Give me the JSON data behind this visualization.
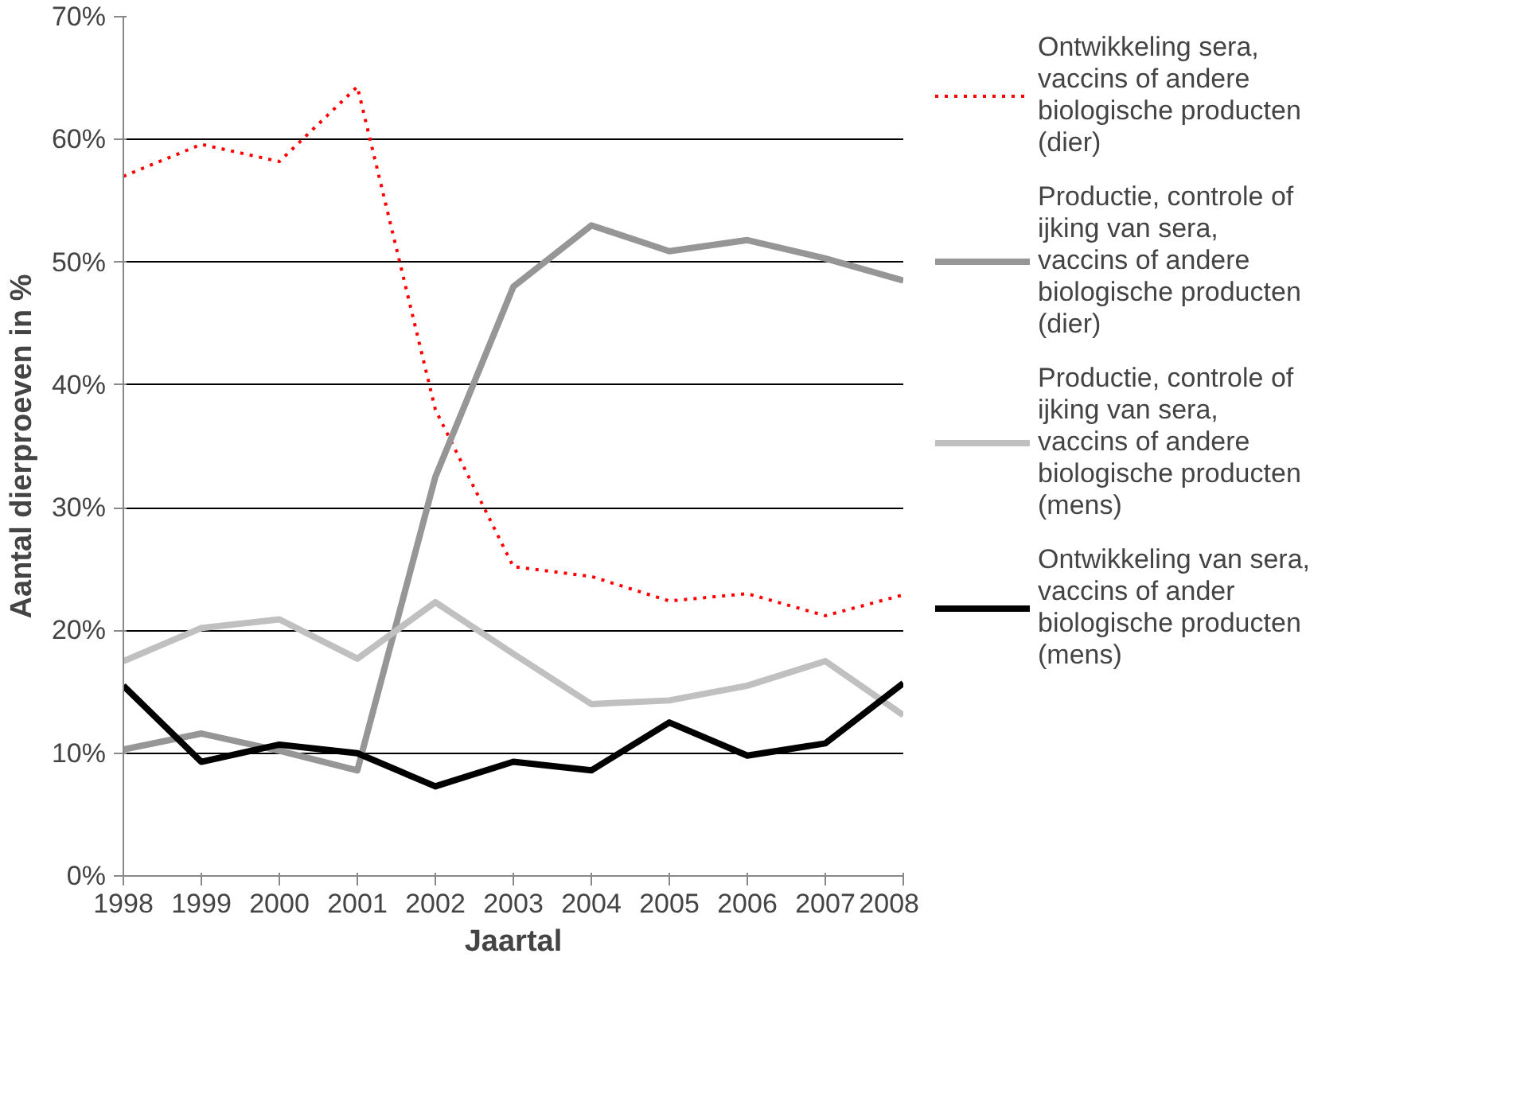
{
  "chart_data": {
    "type": "line",
    "xlabel": "Jaartal",
    "ylabel": "Aantal dierproeven in %",
    "categories": [
      "1998",
      "1999",
      "2000",
      "2001",
      "2002",
      "2003",
      "2004",
      "2005",
      "2006",
      "2007",
      "2008"
    ],
    "series": [
      {
        "name": "Ontwikkeling sera, vaccins of andere biologische producten (dier)",
        "color": "#ff0000",
        "line_style": "dotted",
        "values": [
          57,
          59.6,
          58.2,
          64.3,
          38,
          25.2,
          24.4,
          22.4,
          23,
          21.2,
          22.9
        ]
      },
      {
        "name": "Productie, controle of ijking van sera, vaccins of andere biologische producten (dier)",
        "color": "#969696",
        "values": [
          10.3,
          11.6,
          10.2,
          8.6,
          32.5,
          48,
          53,
          50.9,
          51.8,
          50.3,
          48.5
        ]
      },
      {
        "name": "Productie, controle of ijking van sera, vaccins of andere biologische producten (mens)",
        "color": "#c0c0c0",
        "values": [
          17.5,
          20.2,
          20.9,
          17.7,
          22.3,
          18.1,
          14,
          14.3,
          15.5,
          17.5,
          13.1
        ]
      },
      {
        "name": "Ontwikkeling van sera, vaccins of ander biologische producten (mens)",
        "color": "#000000",
        "values": [
          15.5,
          9.3,
          10.7,
          10,
          7.3,
          9.3,
          8.6,
          12.5,
          9.8,
          10.8,
          15.7
        ]
      }
    ],
    "ylim": [
      0,
      70
    ],
    "yticks": [
      {
        "value": 0,
        "label": "0%"
      },
      {
        "value": 10,
        "label": "10%"
      },
      {
        "value": 20,
        "label": "20%"
      },
      {
        "value": 30,
        "label": "30%"
      },
      {
        "value": 40,
        "label": "40%"
      },
      {
        "value": 50,
        "label": "50%"
      },
      {
        "value": 60,
        "label": "60%"
      },
      {
        "value": 70,
        "label": "70%"
      }
    ],
    "grid": "y",
    "legend": "right",
    "line_style": "solid",
    "marker": "none"
  }
}
